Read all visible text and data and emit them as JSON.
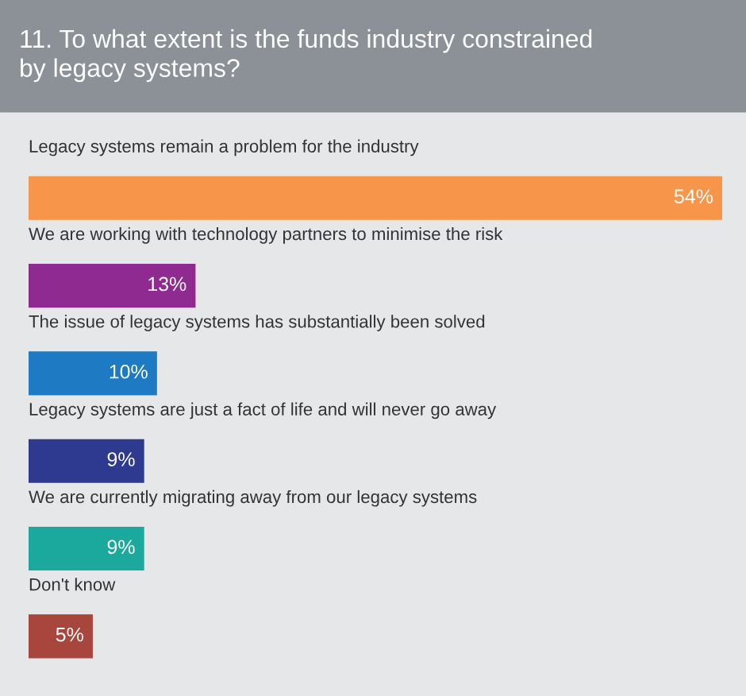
{
  "chart_data": {
    "type": "bar",
    "orientation": "horizontal",
    "title": "11. To what extent is the funds industry constrained\nby legacy systems?",
    "categories": [
      "Legacy systems remain a problem for the industry",
      "We are working with technology partners to minimise the risk",
      "The issue of legacy systems has substantially been solved",
      "Legacy systems are just a fact of life and will never go away",
      "We are currently migrating away from our legacy systems",
      "Don't know"
    ],
    "values": [
      54,
      13,
      10,
      9,
      9,
      5
    ],
    "colors": [
      "#f7964a",
      "#8f2a91",
      "#1e7bc3",
      "#2e3a8f",
      "#1aa99c",
      "#a8453d"
    ],
    "value_labels": [
      "54%",
      "13%",
      "10%",
      "9%",
      "9%",
      "5%"
    ],
    "xlim": [
      0,
      54
    ],
    "tick_labels": false
  }
}
